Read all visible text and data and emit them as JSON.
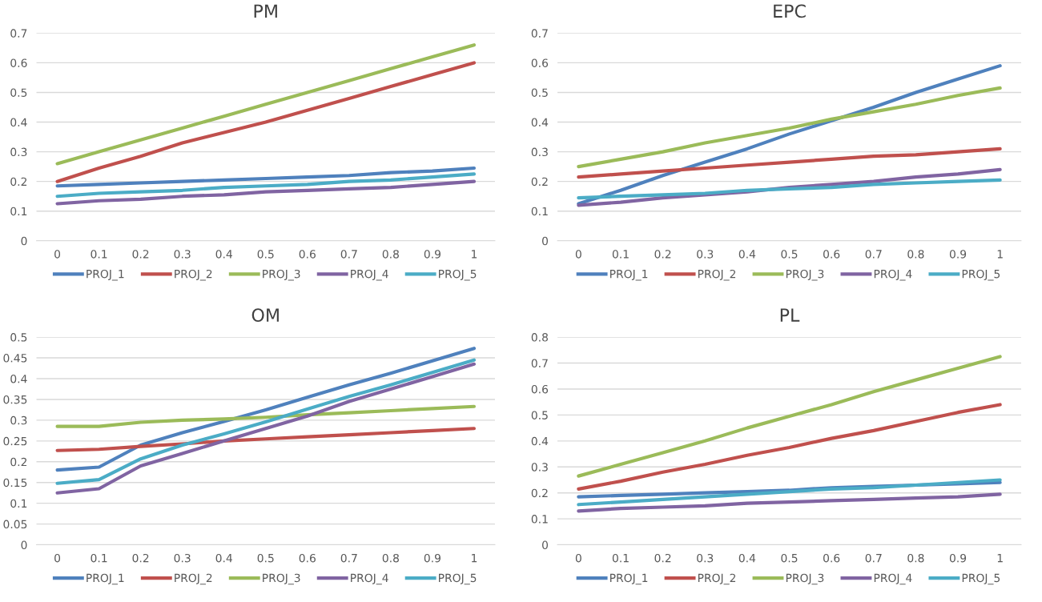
{
  "chart_data": [
    {
      "type": "line",
      "title": "PM",
      "categories": [
        "0",
        "0.1",
        "0.2",
        "0.3",
        "0.4",
        "0.5",
        "0.6",
        "0.7",
        "0.8",
        "0.9",
        "1"
      ],
      "ylim": [
        0,
        0.7
      ],
      "yticks": [
        0,
        0.1,
        0.2,
        0.3,
        0.4,
        0.5,
        0.6,
        0.7
      ],
      "grid": "y",
      "legend": "bottom",
      "marker": "none",
      "line_style": "solid",
      "series": [
        {
          "name": "PROJ_1",
          "color": "#4f81bd",
          "values": [
            0.185,
            0.19,
            0.195,
            0.2,
            0.205,
            0.21,
            0.215,
            0.22,
            0.23,
            0.235,
            0.245
          ]
        },
        {
          "name": "PROJ_2",
          "color": "#c0504d",
          "values": [
            0.2,
            0.245,
            0.285,
            0.33,
            0.365,
            0.4,
            0.44,
            0.48,
            0.52,
            0.56,
            0.6
          ]
        },
        {
          "name": "PROJ_3",
          "color": "#9bbb59",
          "values": [
            0.26,
            0.3,
            0.34,
            0.38,
            0.42,
            0.46,
            0.5,
            0.54,
            0.58,
            0.62,
            0.66
          ]
        },
        {
          "name": "PROJ_4",
          "color": "#8064a2",
          "values": [
            0.125,
            0.135,
            0.14,
            0.15,
            0.155,
            0.165,
            0.17,
            0.175,
            0.18,
            0.19,
            0.2
          ]
        },
        {
          "name": "PROJ_5",
          "color": "#4bacc6",
          "values": [
            0.15,
            0.16,
            0.165,
            0.17,
            0.18,
            0.185,
            0.19,
            0.2,
            0.205,
            0.215,
            0.225
          ]
        }
      ]
    },
    {
      "type": "line",
      "title": "EPC",
      "categories": [
        "0",
        "0.1",
        "0.2",
        "0.3",
        "0.4",
        "0.5",
        "0.6",
        "0.7",
        "0.8",
        "0.9",
        "1"
      ],
      "ylim": [
        0,
        0.7
      ],
      "yticks": [
        0,
        0.1,
        0.2,
        0.3,
        0.4,
        0.5,
        0.6,
        0.7
      ],
      "grid": "y",
      "legend": "bottom",
      "marker": "none",
      "line_style": "solid",
      "series": [
        {
          "name": "PROJ_1",
          "color": "#4f81bd",
          "values": [
            0.125,
            0.17,
            0.22,
            0.265,
            0.31,
            0.36,
            0.405,
            0.45,
            0.5,
            0.545,
            0.59
          ]
        },
        {
          "name": "PROJ_2",
          "color": "#c0504d",
          "values": [
            0.215,
            0.225,
            0.235,
            0.245,
            0.255,
            0.265,
            0.275,
            0.285,
            0.29,
            0.3,
            0.31
          ]
        },
        {
          "name": "PROJ_3",
          "color": "#9bbb59",
          "values": [
            0.25,
            0.275,
            0.3,
            0.33,
            0.355,
            0.38,
            0.41,
            0.435,
            0.46,
            0.49,
            0.515
          ]
        },
        {
          "name": "PROJ_4",
          "color": "#8064a2",
          "values": [
            0.12,
            0.13,
            0.145,
            0.155,
            0.165,
            0.18,
            0.19,
            0.2,
            0.215,
            0.225,
            0.24
          ]
        },
        {
          "name": "PROJ_5",
          "color": "#4bacc6",
          "values": [
            0.145,
            0.15,
            0.155,
            0.16,
            0.17,
            0.175,
            0.18,
            0.19,
            0.195,
            0.2,
            0.205
          ]
        }
      ]
    },
    {
      "type": "line",
      "title": "OM",
      "categories": [
        "0",
        "0.1",
        "0.2",
        "0.3",
        "0.4",
        "0.5",
        "0.6",
        "0.7",
        "0.8",
        "0.9",
        "1"
      ],
      "ylim": [
        0,
        0.5
      ],
      "yticks": [
        0,
        0.05,
        0.1,
        0.15,
        0.2,
        0.25,
        0.3,
        0.35,
        0.4,
        0.45,
        0.5
      ],
      "grid": "y",
      "legend": "bottom",
      "marker": "none",
      "line_style": "solid",
      "series": [
        {
          "name": "PROJ_1",
          "color": "#4f81bd",
          "values": [
            0.18,
            0.187,
            0.24,
            0.27,
            0.297,
            0.325,
            0.355,
            0.385,
            0.413,
            0.443,
            0.473
          ]
        },
        {
          "name": "PROJ_2",
          "color": "#c0504d",
          "values": [
            0.227,
            0.23,
            0.237,
            0.243,
            0.25,
            0.255,
            0.26,
            0.265,
            0.27,
            0.275,
            0.28
          ]
        },
        {
          "name": "PROJ_3",
          "color": "#9bbb59",
          "values": [
            0.285,
            0.285,
            0.295,
            0.3,
            0.303,
            0.307,
            0.313,
            0.318,
            0.323,
            0.328,
            0.333
          ]
        },
        {
          "name": "PROJ_4",
          "color": "#8064a2",
          "values": [
            0.125,
            0.135,
            0.19,
            0.22,
            0.25,
            0.28,
            0.31,
            0.345,
            0.375,
            0.405,
            0.435
          ]
        },
        {
          "name": "PROJ_5",
          "color": "#4bacc6",
          "values": [
            0.148,
            0.157,
            0.207,
            0.24,
            0.267,
            0.296,
            0.327,
            0.357,
            0.385,
            0.415,
            0.445
          ]
        }
      ]
    },
    {
      "type": "line",
      "title": "PL",
      "categories": [
        "0",
        "0.1",
        "0.2",
        "0.3",
        "0.4",
        "0.5",
        "0.6",
        "0.7",
        "0.8",
        "0.9",
        "1"
      ],
      "ylim": [
        0,
        0.8
      ],
      "yticks": [
        0,
        0.1,
        0.2,
        0.3,
        0.4,
        0.5,
        0.6,
        0.7,
        0.8
      ],
      "grid": "y",
      "legend": "bottom",
      "marker": "none",
      "line_style": "solid",
      "series": [
        {
          "name": "PROJ_1",
          "color": "#4f81bd",
          "values": [
            0.185,
            0.19,
            0.195,
            0.2,
            0.205,
            0.21,
            0.22,
            0.225,
            0.23,
            0.235,
            0.24
          ]
        },
        {
          "name": "PROJ_2",
          "color": "#c0504d",
          "values": [
            0.215,
            0.245,
            0.28,
            0.31,
            0.345,
            0.375,
            0.41,
            0.44,
            0.475,
            0.51,
            0.54
          ]
        },
        {
          "name": "PROJ_3",
          "color": "#9bbb59",
          "values": [
            0.265,
            0.31,
            0.355,
            0.4,
            0.45,
            0.495,
            0.54,
            0.59,
            0.635,
            0.68,
            0.725
          ]
        },
        {
          "name": "PROJ_4",
          "color": "#8064a2",
          "values": [
            0.13,
            0.14,
            0.145,
            0.15,
            0.16,
            0.165,
            0.17,
            0.175,
            0.18,
            0.185,
            0.195
          ]
        },
        {
          "name": "PROJ_5",
          "color": "#4bacc6",
          "values": [
            0.155,
            0.165,
            0.175,
            0.185,
            0.195,
            0.205,
            0.215,
            0.22,
            0.23,
            0.24,
            0.25
          ]
        }
      ]
    }
  ]
}
